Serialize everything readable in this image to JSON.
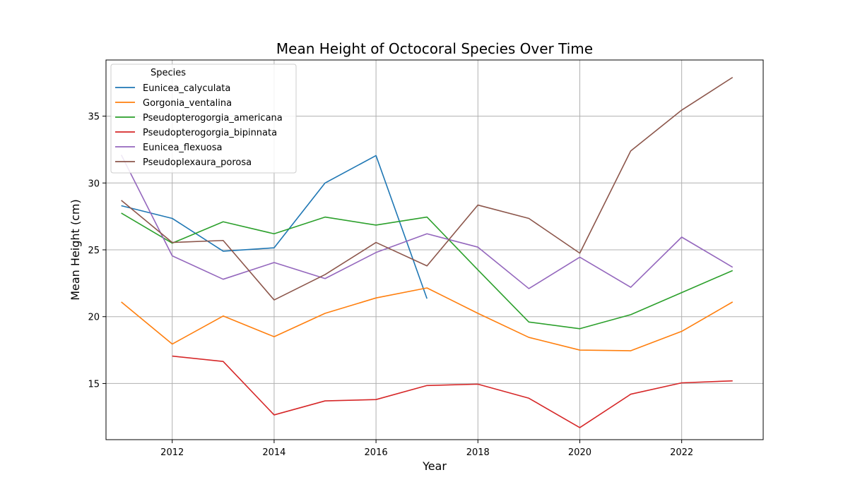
{
  "chart_data": {
    "type": "line",
    "title": "Mean Height of Octocoral Species Over Time",
    "xlabel": "Year",
    "ylabel": "Mean Height (cm)",
    "xlim": [
      2010.7,
      2023.6
    ],
    "ylim": [
      10.8,
      39.2
    ],
    "xticks": [
      2012,
      2014,
      2016,
      2018,
      2020,
      2022
    ],
    "yticks": [
      15,
      20,
      25,
      30,
      35
    ],
    "grid": true,
    "legend": {
      "title": "Species",
      "placement": "top-left"
    },
    "x": [
      2011,
      2012,
      2013,
      2014,
      2015,
      2016,
      2017,
      2018,
      2019,
      2020,
      2021,
      2022,
      2023
    ],
    "series": [
      {
        "name": "Eunicea_calyculata",
        "color": "#1f77b4",
        "values": [
          28.3,
          27.35,
          24.9,
          25.15,
          30.0,
          32.05,
          21.35,
          null,
          null,
          null,
          null,
          null,
          null
        ]
      },
      {
        "name": "Gorgonia_ventalina",
        "color": "#ff7f0e",
        "values": [
          21.1,
          17.95,
          20.05,
          18.5,
          20.25,
          21.4,
          22.15,
          20.25,
          18.45,
          17.5,
          17.45,
          18.9,
          21.1
        ]
      },
      {
        "name": "Pseudopterogorgia_americana",
        "color": "#2ca02c",
        "values": [
          27.75,
          25.5,
          27.1,
          26.2,
          27.45,
          26.85,
          27.45,
          23.5,
          19.6,
          19.1,
          20.15,
          21.8,
          23.45
        ]
      },
      {
        "name": "Pseudopterogorgia_bipinnata",
        "color": "#d62728",
        "values": [
          null,
          17.05,
          16.65,
          12.65,
          13.7,
          13.8,
          14.85,
          14.95,
          13.9,
          11.7,
          14.2,
          15.05,
          15.2
        ]
      },
      {
        "name": "Eunicea_flexuosa",
        "color": "#9467bd",
        "values": [
          32.1,
          24.55,
          22.8,
          24.05,
          22.85,
          24.8,
          26.2,
          25.2,
          22.1,
          24.45,
          22.2,
          25.95,
          23.7
        ]
      },
      {
        "name": "Pseudoplexaura_porosa",
        "color": "#8c564b",
        "values": [
          28.7,
          25.55,
          25.7,
          21.25,
          23.15,
          25.55,
          23.8,
          28.35,
          27.35,
          24.75,
          32.4,
          35.45,
          37.9
        ]
      }
    ]
  }
}
